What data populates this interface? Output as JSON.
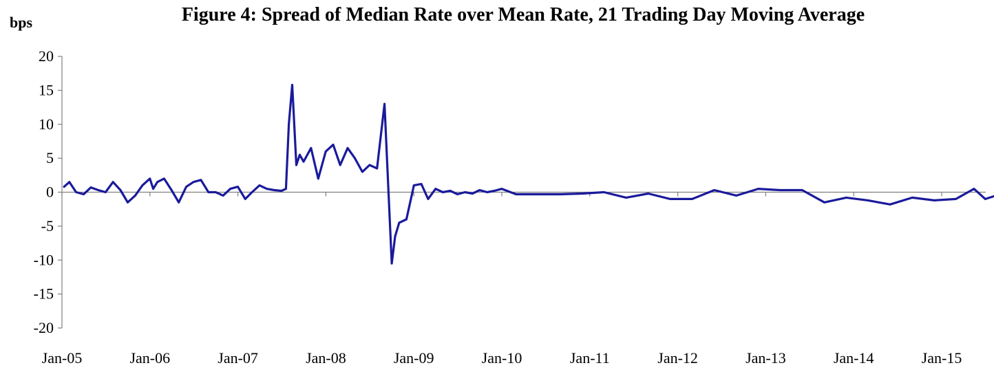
{
  "chart_data": {
    "type": "line",
    "title": "Figure 4: Spread of Median Rate over Mean Rate, 21 Trading Day Moving Average",
    "ylabel": "bps",
    "xlabel": "",
    "ylim": [
      -20,
      20
    ],
    "yticks": [
      20,
      15,
      10,
      5,
      0,
      -5,
      -10,
      -15,
      -20
    ],
    "xticks": [
      "Jan-05",
      "Jan-06",
      "Jan-07",
      "Jan-08",
      "Jan-09",
      "Jan-10",
      "Jan-11",
      "Jan-12",
      "Jan-13",
      "Jan-14",
      "Jan-15"
    ],
    "grid": false,
    "line_color": "#1a1a9c",
    "series": [
      {
        "x": [
          "2005-01-10",
          "2005-02-01",
          "2005-03-01",
          "2005-04-01",
          "2005-05-01",
          "2005-06-01",
          "2005-07-01",
          "2005-08-01",
          "2005-09-01",
          "2005-10-01",
          "2005-11-01",
          "2005-12-01",
          "2006-01-01",
          "2006-01-15",
          "2006-02-01",
          "2006-03-01",
          "2006-04-01",
          "2006-05-01",
          "2006-06-01",
          "2006-07-01",
          "2006-08-01",
          "2006-09-01",
          "2006-10-01",
          "2006-11-01",
          "2006-12-01",
          "2007-01-01",
          "2007-02-01",
          "2007-03-01",
          "2007-04-01",
          "2007-05-01",
          "2007-06-01",
          "2007-07-01",
          "2007-07-20",
          "2007-08-01",
          "2007-08-15",
          "2007-09-01",
          "2007-09-15",
          "2007-10-01",
          "2007-11-01",
          "2007-12-01",
          "2008-01-01",
          "2008-02-01",
          "2008-03-01",
          "2008-04-01",
          "2008-05-01",
          "2008-06-01",
          "2008-07-01",
          "2008-08-01",
          "2008-09-01",
          "2008-09-15",
          "2008-10-01",
          "2008-10-15",
          "2008-11-01",
          "2008-12-01",
          "2009-01-01",
          "2009-02-01",
          "2009-03-01",
          "2009-04-01",
          "2009-05-01",
          "2009-06-01",
          "2009-07-01",
          "2009-08-01",
          "2009-09-01",
          "2009-10-01",
          "2009-11-01",
          "2009-12-01",
          "2010-01-01",
          "2010-03-01",
          "2010-06-01",
          "2010-09-01",
          "2010-12-01",
          "2011-03-01",
          "2011-06-01",
          "2011-09-01",
          "2011-12-01",
          "2012-03-01",
          "2012-06-01",
          "2012-09-01",
          "2012-12-01",
          "2013-03-01",
          "2013-06-01",
          "2013-09-01",
          "2013-12-01",
          "2014-03-01",
          "2014-06-01",
          "2014-09-01",
          "2014-12-01",
          "2015-03-01",
          "2015-05-15",
          "2015-07-01",
          "2015-08-15"
        ],
        "values": [
          0.8,
          1.5,
          0.0,
          -0.3,
          0.7,
          0.3,
          0.0,
          1.5,
          0.3,
          -1.5,
          -0.5,
          1.0,
          2.0,
          0.5,
          1.5,
          2.0,
          0.3,
          -1.5,
          0.8,
          1.5,
          1.8,
          0.0,
          0.0,
          -0.5,
          0.5,
          0.8,
          -1.0,
          0.0,
          1.0,
          0.5,
          0.3,
          0.2,
          0.5,
          10.0,
          15.8,
          4.0,
          5.5,
          4.5,
          6.5,
          2.0,
          6.0,
          7.0,
          4.0,
          6.5,
          5.0,
          3.0,
          4.0,
          3.5,
          13.0,
          2.0,
          -10.5,
          -6.5,
          -4.5,
          -4.0,
          1.0,
          1.2,
          -1.0,
          0.5,
          0.0,
          0.2,
          -0.3,
          0.0,
          -0.2,
          0.3,
          0.0,
          0.2,
          0.5,
          -0.3,
          -0.3,
          -0.3,
          -0.2,
          0.0,
          -0.8,
          -0.2,
          -1.0,
          -1.0,
          0.3,
          -0.5,
          0.5,
          0.3,
          0.3,
          -1.5,
          -0.8,
          -1.2,
          -1.8,
          -0.8,
          -1.2,
          -1.0,
          0.5,
          -1.0,
          -0.5
        ]
      }
    ]
  }
}
